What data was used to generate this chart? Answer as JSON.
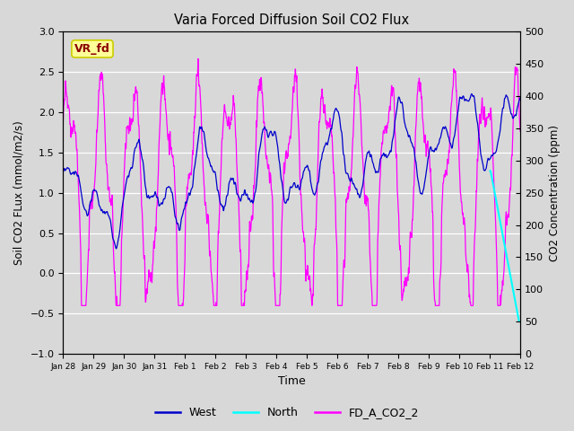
{
  "title": "Varia Forced Diffusion Soil CO2 Flux",
  "xlabel": "Time",
  "ylabel_left": "Soil CO2 FLux (mmol/m2/s)",
  "ylabel_right": "CO2 Concentration (ppm)",
  "ylim_left": [
    -1.0,
    3.0
  ],
  "ylim_right": [
    0,
    500
  ],
  "west_color": "#0000CC",
  "north_color": "#00FFFF",
  "co2_color": "#FF00FF",
  "bg_color": "#D8D8D8",
  "annotation_text": "VR_fd",
  "annotation_color": "#8B0000",
  "annotation_bg": "#FFFF99",
  "annotation_border": "#CCCC00",
  "legend_entries": [
    "West",
    "North",
    "FD_A_CO2_2"
  ],
  "legend_colors": [
    "#0000CC",
    "#00FFFF",
    "#FF00FF"
  ],
  "tick_labels": [
    "Jan 28",
    "Jan 29",
    "Jan 30",
    "Jan 31",
    "Feb 1",
    "Feb 2",
    "Feb 3",
    "Feb 4",
    "Feb 5",
    "Feb 6",
    "Feb 7",
    "Feb 8",
    "Feb 9",
    "Feb 10",
    "Feb 11",
    "Feb 12"
  ],
  "right_yticks": [
    0,
    50,
    100,
    150,
    200,
    250,
    300,
    350,
    400,
    450,
    500
  ],
  "left_yticks": [
    -1.0,
    -0.5,
    0.0,
    0.5,
    1.0,
    1.5,
    2.0,
    2.5,
    3.0
  ],
  "west_lw": 0.9,
  "co2_lw": 0.9,
  "north_lw": 1.5
}
